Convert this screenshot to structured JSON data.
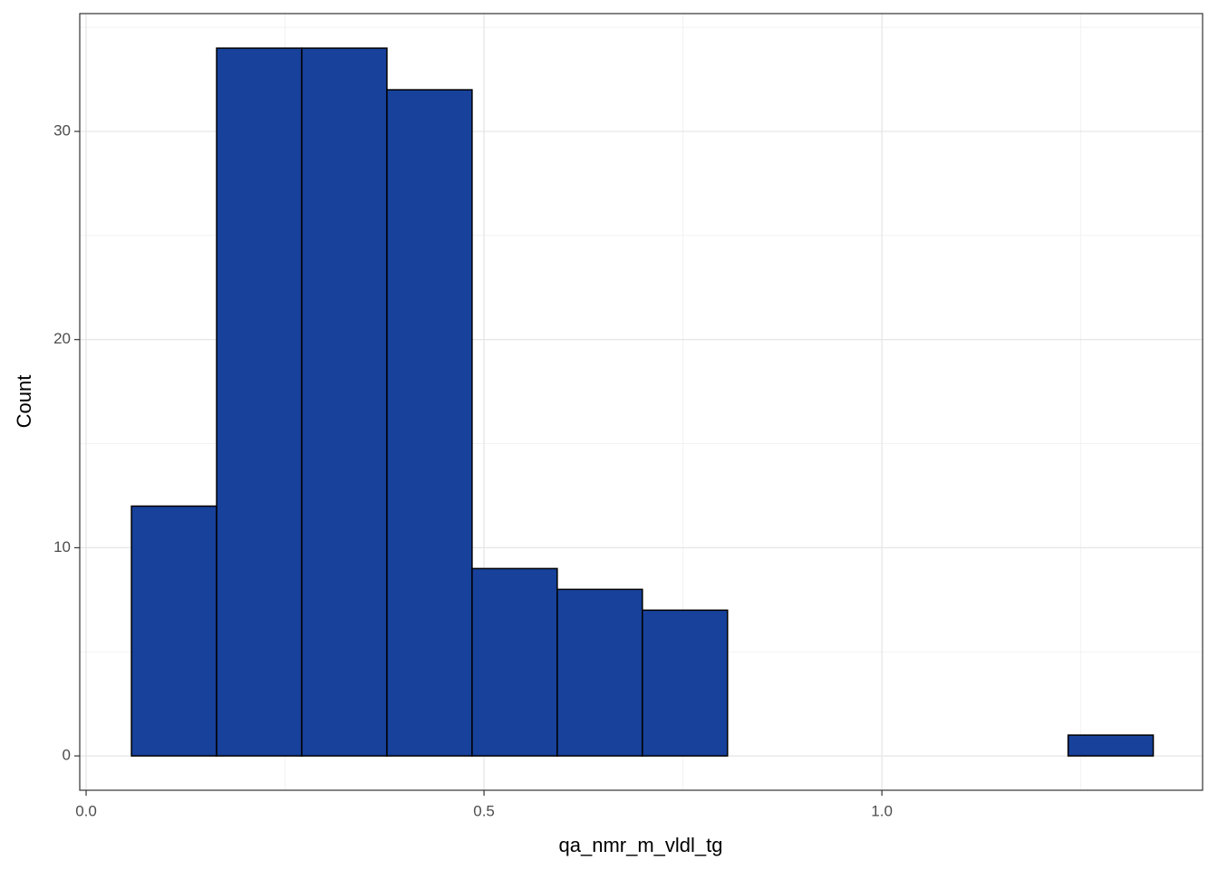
{
  "chart_data": {
    "type": "histogram",
    "x_label": "qa_nmr_m_vldl_tg",
    "y_label": "Count",
    "bins": [
      0.057,
      0.164,
      0.271,
      0.378,
      0.485,
      0.592,
      0.699,
      0.806,
      0.913,
      1.02,
      1.127,
      1.234,
      1.341
    ],
    "values": [
      12,
      34,
      34,
      32,
      9,
      8,
      7,
      0,
      0,
      0,
      0,
      1
    ],
    "color": "#17419a",
    "edge_color": "#000000",
    "xlim": [
      -0.008,
      1.403
    ],
    "ylim": [
      -1.65,
      35.66
    ],
    "xticks": [
      {
        "value": 0,
        "label": "0.0"
      },
      0.5,
      {
        "value": 1,
        "label": "1.0"
      }
    ],
    "yticks": [
      0,
      10,
      20,
      30
    ],
    "x_minor_grid": [
      0.25,
      0.75,
      1.25
    ],
    "y_minor_grid": [
      5,
      15,
      25,
      35
    ],
    "grid": true
  }
}
